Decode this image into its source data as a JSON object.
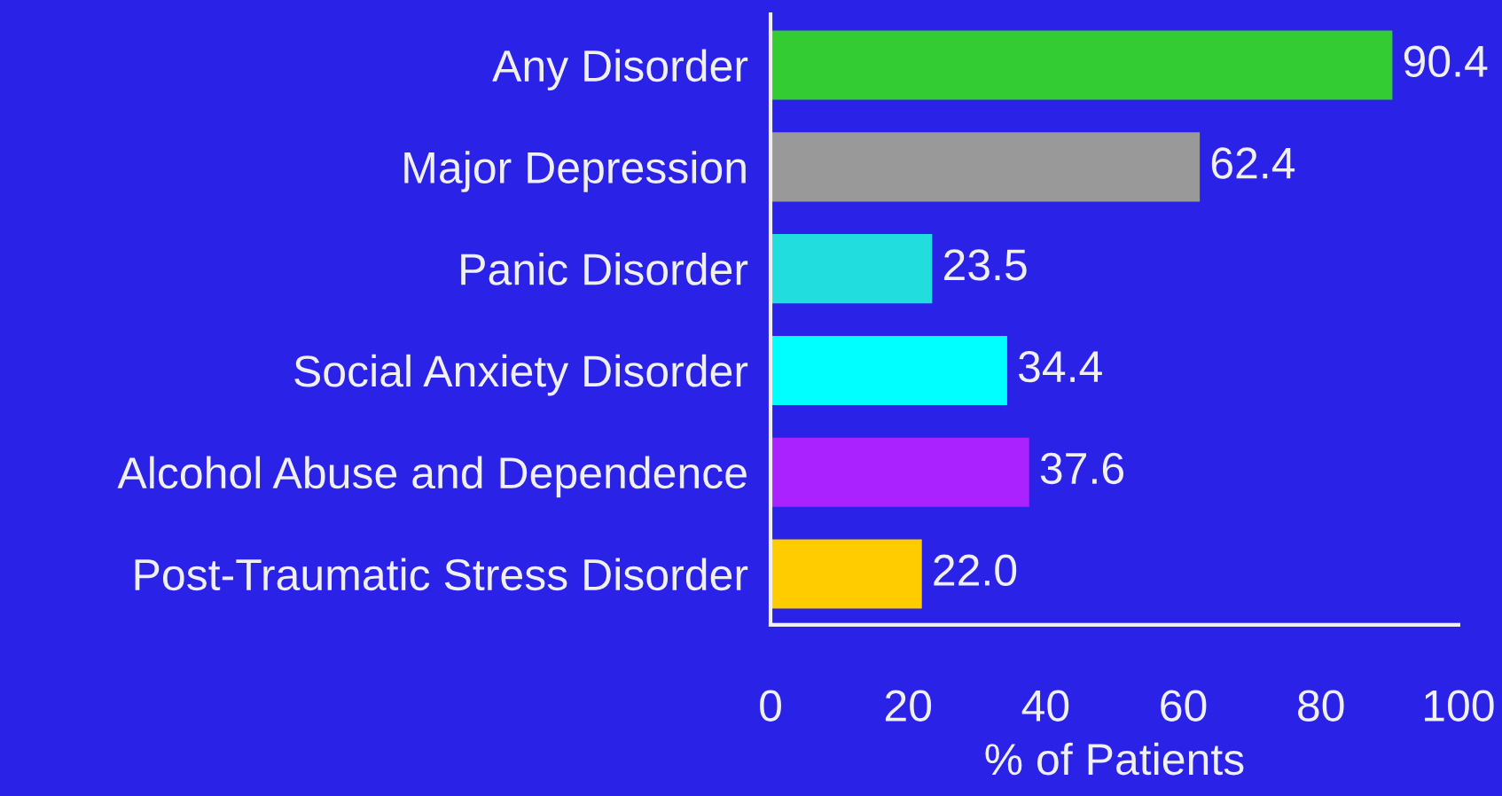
{
  "chart_data": {
    "type": "bar",
    "orientation": "horizontal",
    "xlabel": "% of Patients",
    "categories": [
      "Any Disorder",
      "Major Depression",
      "Panic Disorder",
      "Social Anxiety Disorder",
      "Alcohol Abuse and Dependence",
      "Post-Traumatic Stress Disorder"
    ],
    "values": [
      90.4,
      62.4,
      23.5,
      34.4,
      37.6,
      22.0
    ],
    "value_labels": [
      "90.4",
      "62.4",
      "23.5",
      "34.4",
      "37.6",
      "22.0"
    ],
    "colors": [
      "#33cc33",
      "#999999",
      "#22dddd",
      "#00ffff",
      "#aa22ff",
      "#ffcc00"
    ],
    "xlim": [
      0,
      100
    ],
    "xticks": [
      0,
      20,
      40,
      60,
      80,
      100
    ],
    "grid": false,
    "legend": false
  }
}
